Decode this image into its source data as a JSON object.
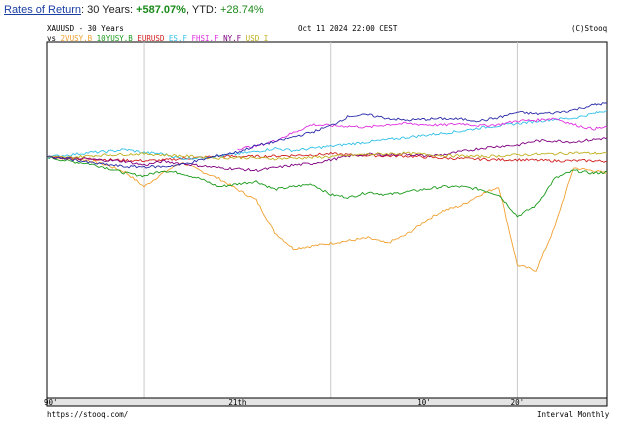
{
  "header": {
    "link_text": "Rates of Return",
    "period_text": ": 30 Years: ",
    "total_return": "+587.07%",
    "ytd_text": ", YTD: ",
    "ytd_return": "+28.74%"
  },
  "chart_meta": {
    "symbol_line": "XAUUSD - 30 Years",
    "vs_label": "vs",
    "timestamp": "Oct 11 2024 22:00 CEST",
    "credit": "(C)Stooq",
    "footer_url": "https://stooq.com/",
    "footer_interval": "Interval Monthly"
  },
  "chart_data": {
    "type": "line",
    "xlim": [
      1994.8,
      2024.8
    ],
    "x_ticks": [
      {
        "label": "90'",
        "x": 1995.0
      },
      {
        "label": "21th",
        "x": 2005.0
      },
      {
        "label": "10'",
        "x": 2015.0
      },
      {
        "label": "20'",
        "x": 2020.0
      }
    ],
    "gridlines_x": [
      2000.0,
      2010.0,
      2020.0
    ],
    "main_series": {
      "name": "XAUUSD",
      "color": "#2a2aa8",
      "points": [
        [
          1994.8,
          0
        ],
        [
          1996,
          -3
        ],
        [
          1997,
          -10
        ],
        [
          1998,
          -14
        ],
        [
          1999,
          -18
        ],
        [
          2000,
          -18
        ],
        [
          2001,
          -18
        ],
        [
          2002,
          -14
        ],
        [
          2003,
          -6
        ],
        [
          2004,
          3
        ],
        [
          2005,
          9
        ],
        [
          2006,
          21
        ],
        [
          2007,
          28
        ],
        [
          2008,
          37
        ],
        [
          2009,
          46
        ],
        [
          2010,
          58
        ],
        [
          2011,
          76
        ],
        [
          2012,
          78
        ],
        [
          2013,
          72
        ],
        [
          2014,
          68
        ],
        [
          2015,
          70
        ],
        [
          2016,
          71
        ],
        [
          2017,
          70
        ],
        [
          2018,
          67
        ],
        [
          2019,
          73
        ],
        [
          2020,
          83
        ],
        [
          2021,
          80
        ],
        [
          2022,
          82
        ],
        [
          2023,
          87
        ],
        [
          2024,
          96
        ],
        [
          2024.8,
          100
        ]
      ]
    },
    "series": [
      {
        "name": "2VUSY.B",
        "color": "#f0a030",
        "points": [
          [
            1994.8,
            0
          ],
          [
            1996,
            -3
          ],
          [
            1997,
            -6
          ],
          [
            1998,
            -15
          ],
          [
            1999,
            -28
          ],
          [
            2000,
            -55
          ],
          [
            2001,
            -30
          ],
          [
            2002,
            -10
          ],
          [
            2003,
            -25
          ],
          [
            2004,
            -40
          ],
          [
            2005,
            -60
          ],
          [
            2006,
            -80
          ],
          [
            2007,
            -140
          ],
          [
            2008,
            -170
          ],
          [
            2009,
            -165
          ],
          [
            2010,
            -160
          ],
          [
            2011,
            -155
          ],
          [
            2012,
            -150
          ],
          [
            2013,
            -160
          ],
          [
            2014,
            -145
          ],
          [
            2015,
            -120
          ],
          [
            2016,
            -100
          ],
          [
            2017,
            -90
          ],
          [
            2018,
            -70
          ],
          [
            2019,
            -55
          ],
          [
            2020,
            -200
          ],
          [
            2021,
            -210
          ],
          [
            2022,
            -130
          ],
          [
            2023,
            -20
          ],
          [
            2024,
            -25
          ],
          [
            2024.8,
            -30
          ]
        ]
      },
      {
        "name": "10YUSY.B",
        "color": "#1a9a1a",
        "points": [
          [
            1994.8,
            0
          ],
          [
            1996,
            -8
          ],
          [
            1997,
            -12
          ],
          [
            1998,
            -20
          ],
          [
            1999,
            -30
          ],
          [
            2000,
            -35
          ],
          [
            2001,
            -25
          ],
          [
            2002,
            -30
          ],
          [
            2003,
            -40
          ],
          [
            2004,
            -55
          ],
          [
            2005,
            -50
          ],
          [
            2006,
            -45
          ],
          [
            2007,
            -60
          ],
          [
            2008,
            -55
          ],
          [
            2009,
            -50
          ],
          [
            2010,
            -70
          ],
          [
            2011,
            -75
          ],
          [
            2012,
            -65
          ],
          [
            2013,
            -70
          ],
          [
            2014,
            -65
          ],
          [
            2015,
            -60
          ],
          [
            2016,
            -55
          ],
          [
            2017,
            -55
          ],
          [
            2018,
            -60
          ],
          [
            2019,
            -70
          ],
          [
            2020,
            -110
          ],
          [
            2021,
            -90
          ],
          [
            2022,
            -40
          ],
          [
            2023,
            -25
          ],
          [
            2024,
            -30
          ],
          [
            2024.8,
            -28
          ]
        ]
      },
      {
        "name": "EURUSD",
        "color": "#d02020",
        "points": [
          [
            1994.8,
            0
          ],
          [
            1996,
            -2
          ],
          [
            1997,
            -3
          ],
          [
            1998,
            -5
          ],
          [
            1999,
            -6
          ],
          [
            2000,
            -7
          ],
          [
            2001,
            -6
          ],
          [
            2002,
            -3
          ],
          [
            2003,
            -1
          ],
          [
            2004,
            2
          ],
          [
            2005,
            1
          ],
          [
            2006,
            1
          ],
          [
            2007,
            2
          ],
          [
            2008,
            3
          ],
          [
            2009,
            4
          ],
          [
            2010,
            6
          ],
          [
            2011,
            4
          ],
          [
            2012,
            3
          ],
          [
            2013,
            2
          ],
          [
            2014,
            2
          ],
          [
            2015,
            0
          ],
          [
            2016,
            -2
          ],
          [
            2017,
            -3
          ],
          [
            2018,
            -4
          ],
          [
            2019,
            -5
          ],
          [
            2020,
            -5
          ],
          [
            2021,
            -6
          ],
          [
            2022,
            -7
          ],
          [
            2023,
            -7
          ],
          [
            2024,
            -7
          ],
          [
            2024.8,
            -8
          ]
        ]
      },
      {
        "name": "ES.F",
        "color": "#30c0e8",
        "points": [
          [
            1994.8,
            0
          ],
          [
            1996,
            4
          ],
          [
            1997,
            8
          ],
          [
            1998,
            10
          ],
          [
            1999,
            14
          ],
          [
            2000,
            8
          ],
          [
            2001,
            6
          ],
          [
            2002,
            -3
          ],
          [
            2003,
            -1
          ],
          [
            2004,
            2
          ],
          [
            2005,
            6
          ],
          [
            2006,
            10
          ],
          [
            2007,
            16
          ],
          [
            2008,
            12
          ],
          [
            2009,
            16
          ],
          [
            2010,
            20
          ],
          [
            2011,
            24
          ],
          [
            2012,
            28
          ],
          [
            2013,
            32
          ],
          [
            2014,
            36
          ],
          [
            2015,
            40
          ],
          [
            2016,
            44
          ],
          [
            2017,
            48
          ],
          [
            2018,
            54
          ],
          [
            2019,
            58
          ],
          [
            2020,
            62
          ],
          [
            2021,
            66
          ],
          [
            2022,
            70
          ],
          [
            2023,
            72
          ],
          [
            2024,
            80
          ],
          [
            2024.8,
            86
          ]
        ]
      },
      {
        "name": "FHSI.F",
        "color": "#e030e0",
        "points": [
          [
            2005,
            15
          ],
          [
            2006,
            20
          ],
          [
            2007,
            30
          ],
          [
            2008,
            45
          ],
          [
            2009,
            60
          ],
          [
            2010,
            58
          ],
          [
            2011,
            57
          ],
          [
            2012,
            55
          ],
          [
            2013,
            60
          ],
          [
            2014,
            62
          ],
          [
            2015,
            60
          ],
          [
            2016,
            59
          ],
          [
            2017,
            62
          ],
          [
            2018,
            58
          ],
          [
            2019,
            60
          ],
          [
            2020,
            67
          ],
          [
            2021,
            68
          ],
          [
            2022,
            72
          ],
          [
            2023,
            60
          ],
          [
            2024,
            52
          ],
          [
            2024.8,
            55
          ]
        ]
      },
      {
        "name": "NY.F",
        "color": "#800080",
        "points": [
          [
            1994.8,
            0
          ],
          [
            1996,
            -2
          ],
          [
            1997,
            -4
          ],
          [
            1998,
            -6
          ],
          [
            1999,
            -8
          ],
          [
            2000,
            -15
          ],
          [
            2001,
            -8
          ],
          [
            2002,
            -12
          ],
          [
            2003,
            -16
          ],
          [
            2004,
            -20
          ],
          [
            2005,
            -22
          ],
          [
            2006,
            -25
          ],
          [
            2007,
            -20
          ],
          [
            2008,
            -15
          ],
          [
            2009,
            -12
          ],
          [
            2010,
            -5
          ],
          [
            2011,
            2
          ],
          [
            2012,
            5
          ],
          [
            2013,
            4
          ],
          [
            2014,
            6
          ],
          [
            2015,
            2
          ],
          [
            2016,
            4
          ],
          [
            2017,
            10
          ],
          [
            2018,
            16
          ],
          [
            2019,
            20
          ],
          [
            2020,
            22
          ],
          [
            2021,
            30
          ],
          [
            2022,
            30
          ],
          [
            2023,
            28
          ],
          [
            2024,
            32
          ],
          [
            2024.8,
            35
          ]
        ]
      },
      {
        "name": "USD_I",
        "color": "#c0b020",
        "points": [
          [
            1994.8,
            0
          ],
          [
            1996,
            -1
          ],
          [
            1997,
            2
          ],
          [
            1998,
            4
          ],
          [
            1999,
            5
          ],
          [
            2000,
            6
          ],
          [
            2001,
            4
          ],
          [
            2002,
            2
          ],
          [
            2003,
            0
          ],
          [
            2004,
            -2
          ],
          [
            2005,
            -1
          ],
          [
            2006,
            -2
          ],
          [
            2007,
            -3
          ],
          [
            2008,
            -2
          ],
          [
            2009,
            -1
          ],
          [
            2010,
            1
          ],
          [
            2011,
            3
          ],
          [
            2012,
            5
          ],
          [
            2013,
            6
          ],
          [
            2014,
            7
          ],
          [
            2015,
            5
          ],
          [
            2016,
            3
          ],
          [
            2017,
            2
          ],
          [
            2018,
            1
          ],
          [
            2019,
            2
          ],
          [
            2020,
            4
          ],
          [
            2021,
            5
          ],
          [
            2022,
            6
          ],
          [
            2023,
            8
          ],
          [
            2024,
            7
          ],
          [
            2024.8,
            7
          ]
        ]
      }
    ]
  }
}
